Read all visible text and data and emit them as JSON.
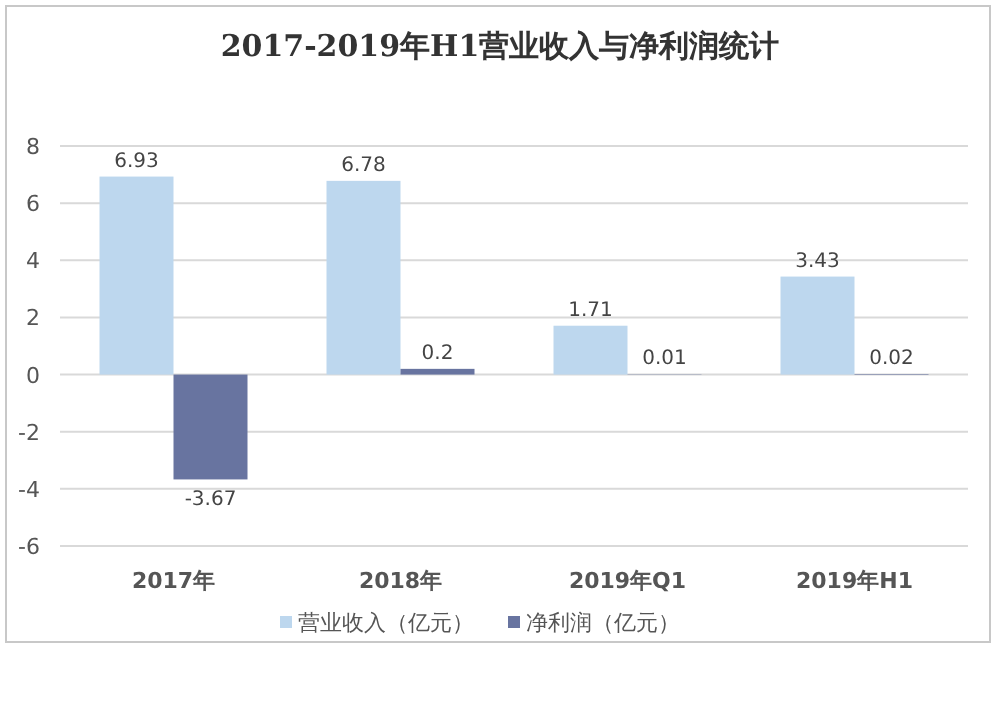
{
  "chart_data": {
    "type": "bar",
    "title": "2017-2019年H1营业收入与净利润统计",
    "categories": [
      "2017年",
      "2018年",
      "2019年Q1",
      "2019年H1"
    ],
    "series": [
      {
        "name": "营业收入（亿元）",
        "color": "#bdd7ee",
        "values": [
          6.93,
          6.78,
          1.71,
          3.43
        ]
      },
      {
        "name": "净利润（亿元）",
        "color": "#6874a0",
        "values": [
          -3.67,
          0.2,
          0.01,
          0.02
        ]
      }
    ],
    "ylim": [
      -6,
      8
    ],
    "yticks": [
      -6,
      -4,
      -2,
      0,
      2,
      4,
      6,
      8
    ],
    "grid": "y",
    "legend": "bottom",
    "data_labels": true
  }
}
